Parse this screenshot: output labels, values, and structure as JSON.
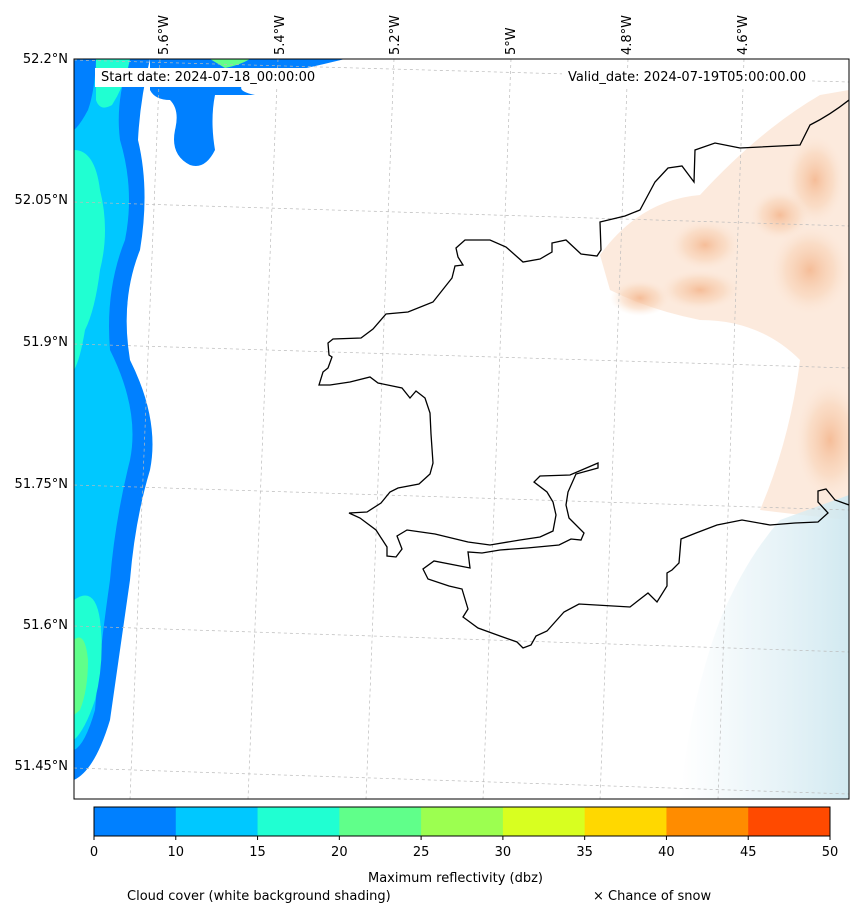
{
  "map": {
    "start_date": "Start date: 2024-07-18_00:00:00",
    "valid_date": "Valid_date: 2024-07-19T05:00:00.00",
    "longitude_labels": [
      "5.6°W",
      "5.4°W",
      "5.2°W",
      "5°W",
      "4.8°W",
      "4.6°W"
    ],
    "latitude_labels": [
      "52.2°N",
      "52.05°N",
      "51.9°N",
      "51.75°N",
      "51.6°N",
      "51.45°N"
    ]
  },
  "colorbar": {
    "label": "Maximum reflectivity (dbz)",
    "ticks": [
      "0",
      "10",
      "15",
      "20",
      "25",
      "30",
      "35",
      "40",
      "45",
      "50"
    ],
    "colors": [
      "#0080ff",
      "#00c8ff",
      "#20ffd2",
      "#60ff8a",
      "#9cff50",
      "#d8ff20",
      "#ffd800",
      "#ff8c00",
      "#ff4a00"
    ]
  },
  "legend": {
    "cloud_cover": "Cloud cover (white background shading)",
    "snow": "× Chance of snow"
  }
}
